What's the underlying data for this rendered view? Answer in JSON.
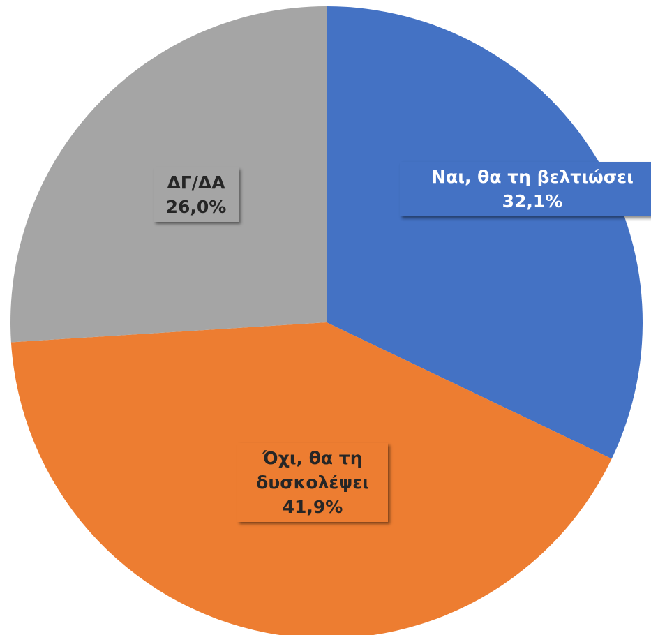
{
  "chart_data": {
    "type": "pie",
    "categories": [
      "Ναι, θα τη βελτιώσει",
      "Όχι, θα τη δυσκολέψει",
      "ΔΓ/ΔΑ"
    ],
    "values": [
      32.1,
      41.9,
      26.0
    ],
    "value_labels": [
      "32,1%",
      "41,9%",
      "26,0%"
    ],
    "colors": [
      "#4472c4",
      "#ed7d31",
      "#a5a5a5"
    ]
  }
}
